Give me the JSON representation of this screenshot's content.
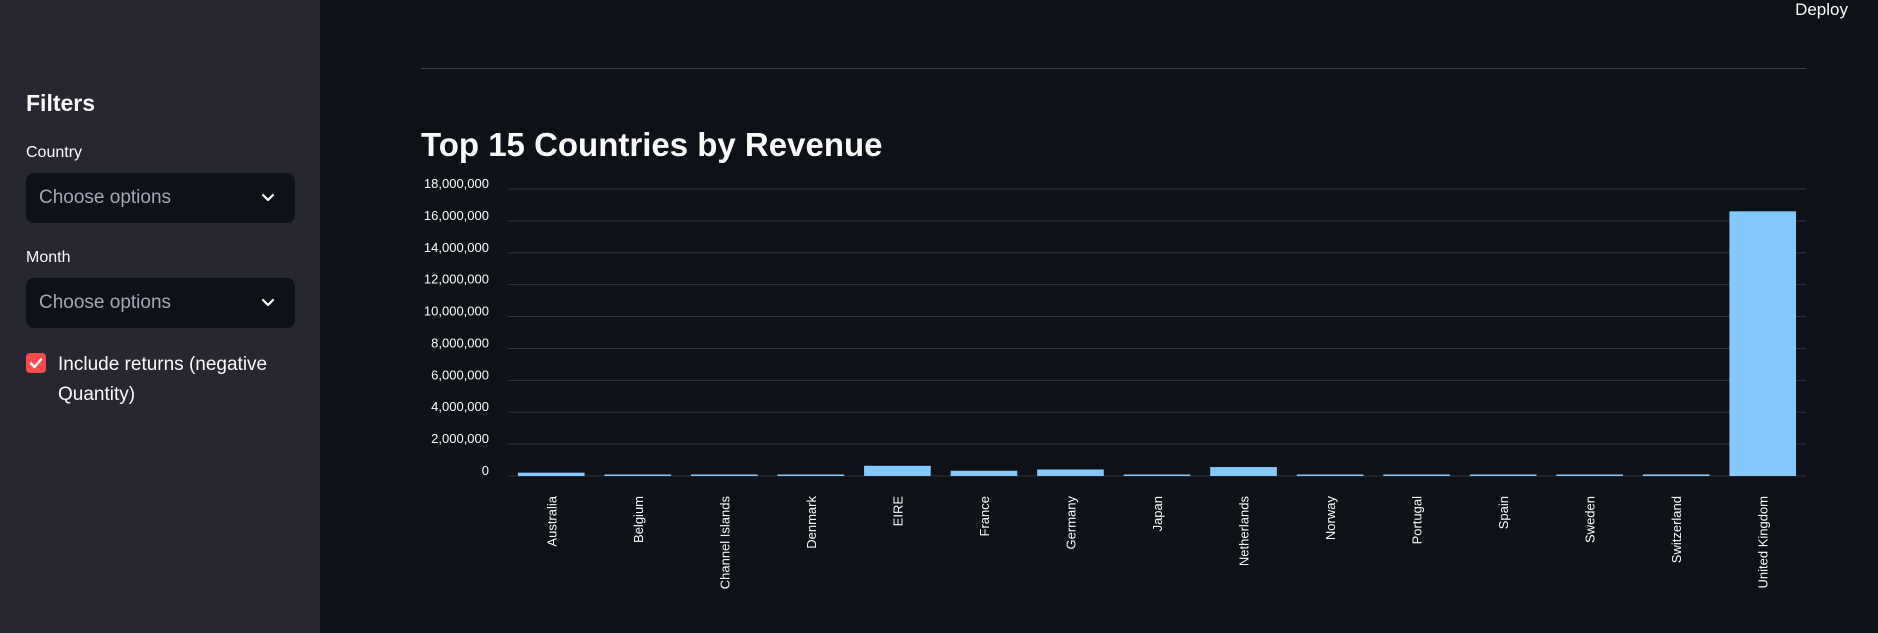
{
  "header": {
    "deploy_label": "Deploy"
  },
  "sidebar": {
    "title": "Filters",
    "country": {
      "label": "Country",
      "placeholder": "Choose options"
    },
    "month": {
      "label": "Month",
      "placeholder": "Choose options"
    },
    "include_returns": {
      "label": "Include returns (negative Quantity)",
      "checked": true
    },
    "checkbox_color": "#ff4b4b",
    "icons": {
      "select_chevron": "chevron-down-icon",
      "checkbox": "check-icon"
    }
  },
  "main": {
    "title": "Top 15 Countries by Revenue"
  },
  "chart_data": {
    "type": "bar",
    "title": "",
    "xlabel": "",
    "ylabel": "",
    "categories": [
      "Australia",
      "Belgium",
      "Channel Islands",
      "Denmark",
      "EIRE",
      "France",
      "Germany",
      "Japan",
      "Netherlands",
      "Norway",
      "Portugal",
      "Spain",
      "Sweden",
      "Switzerland",
      "United Kingdom"
    ],
    "values": [
      210000,
      50000,
      30000,
      40000,
      640000,
      330000,
      410000,
      40000,
      560000,
      30000,
      40000,
      90000,
      70000,
      100000,
      16600000
    ],
    "ylim": [
      0,
      18000000
    ],
    "yticks": [
      0,
      2000000,
      4000000,
      6000000,
      8000000,
      10000000,
      12000000,
      14000000,
      16000000,
      18000000
    ],
    "ytick_labels": [
      "0",
      "2,000,000",
      "4,000,000",
      "6,000,000",
      "8,000,000",
      "10,000,000",
      "12,000,000",
      "14,000,000",
      "16,000,000",
      "18,000,000"
    ],
    "grid": true,
    "bar_color": "#83c9ff"
  }
}
